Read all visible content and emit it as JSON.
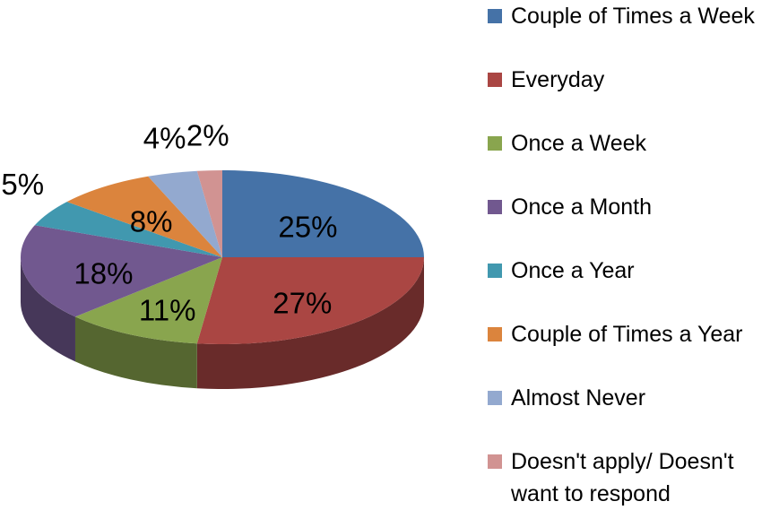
{
  "chart_data": {
    "type": "pie3d",
    "categories": [
      "Couple of Times a Week",
      "Everyday",
      "Once a Week",
      "Once a Month",
      "Once a Year",
      "Couple of Times a Year",
      "Almost Never",
      "Doesn't apply/ Doesn't want to respond"
    ],
    "values": [
      25,
      27,
      11,
      18,
      5,
      8,
      4,
      2
    ],
    "value_labels": [
      "25%",
      "27%",
      "11%",
      "18%",
      "5%",
      "8%",
      "4%",
      "2%"
    ],
    "colors": [
      "#4572a7",
      "#aa4643",
      "#89a54e",
      "#71588f",
      "#4198af",
      "#db843d",
      "#93a9cf",
      "#d19392"
    ],
    "legend": "right"
  }
}
